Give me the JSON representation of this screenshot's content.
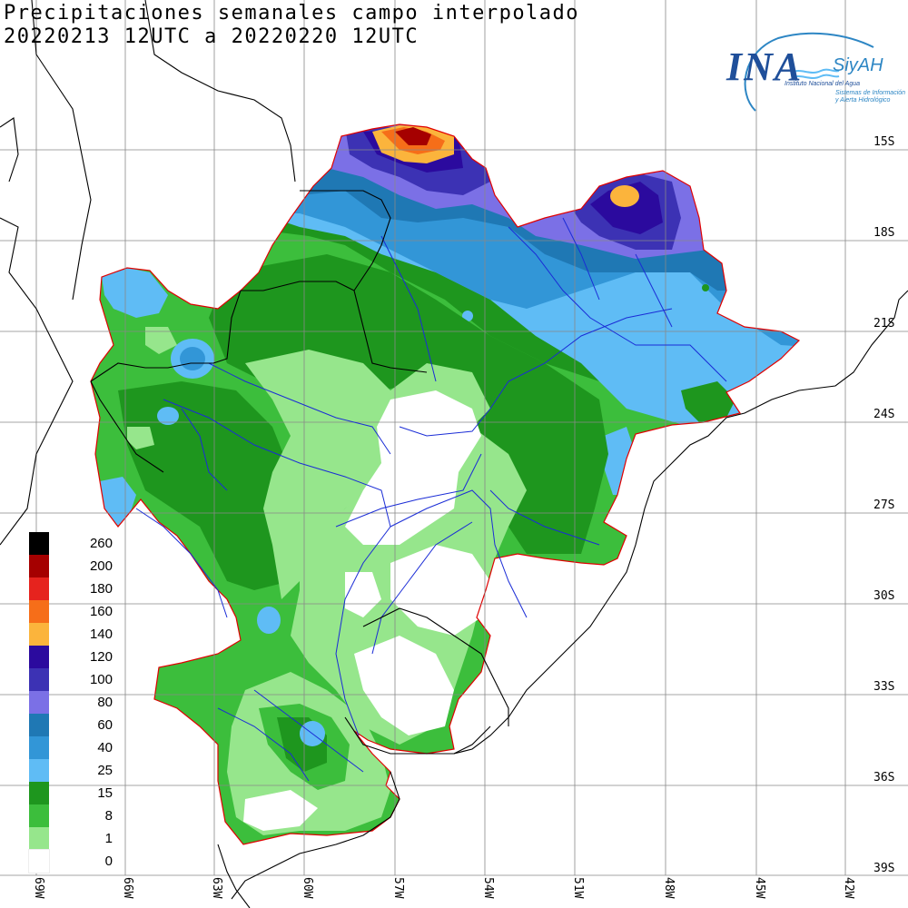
{
  "title": {
    "line1": "Precipitaciones semanales campo interpolado",
    "line2": "20220213 12UTC a 20220220 12UTC"
  },
  "logo": {
    "main": "INA",
    "brand": "SiyAH",
    "subtitle": "Instituto Nacional del Agua",
    "tagline_1": "Sistemas de Información",
    "tagline_2": "y Alerta Hidrológico"
  },
  "latitude_labels": [
    "15S",
    "18S",
    "21S",
    "24S",
    "27S",
    "30S",
    "33S",
    "36S",
    "39S"
  ],
  "longitude_labels": [
    "69W",
    "66W",
    "63W",
    "60W",
    "57W",
    "54W",
    "51W",
    "48W",
    "45W",
    "42W"
  ],
  "legend": [
    {
      "label": "260",
      "color": "#000000"
    },
    {
      "label": "200",
      "color": "#a50000"
    },
    {
      "label": "180",
      "color": "#e6231e"
    },
    {
      "label": "160",
      "color": "#f66e19"
    },
    {
      "label": "140",
      "color": "#fbb43c"
    },
    {
      "label": "120",
      "color": "#2b0a9e"
    },
    {
      "label": "100",
      "color": "#3c32b4"
    },
    {
      "label": "80",
      "color": "#7b70e6"
    },
    {
      "label": "60",
      "color": "#1f78b4"
    },
    {
      "label": "40",
      "color": "#3296d7"
    },
    {
      "label": "25",
      "color": "#5fbcf5"
    },
    {
      "label": "15",
      "color": "#1e961e"
    },
    {
      "label": "8",
      "color": "#3cbe3c"
    },
    {
      "label": "1",
      "color": "#96e68c"
    },
    {
      "label": "0",
      "color": "#ffffff"
    }
  ]
}
